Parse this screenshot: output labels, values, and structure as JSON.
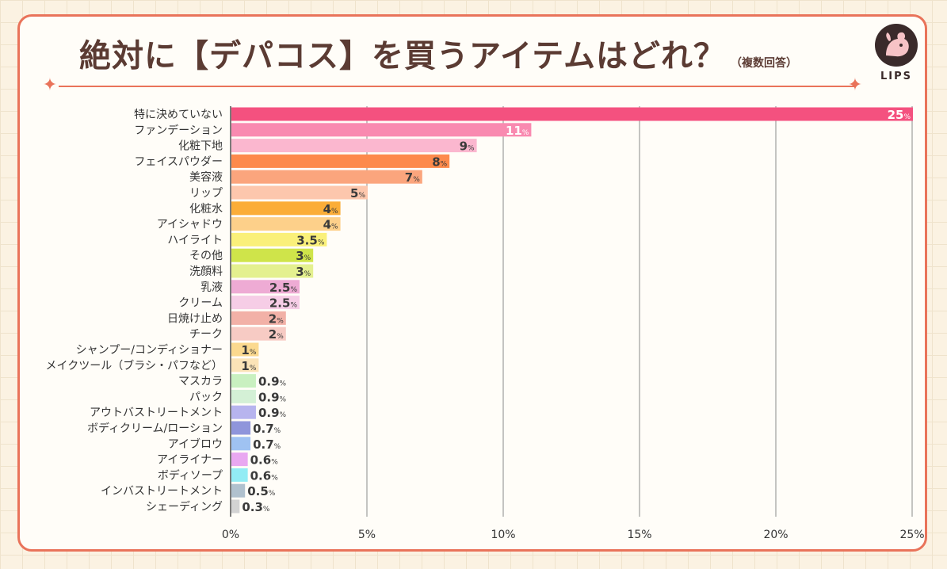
{
  "title": "絶対に【デパコス】を買うアイテムはどれ？",
  "note": "（複数回答）",
  "logo": {
    "text": "LIPS"
  },
  "colors": {
    "accent": "#e9735a",
    "title": "#5b3b33"
  },
  "chart_data": {
    "type": "bar",
    "orientation": "horizontal",
    "title": "絶対に【デパコス】を買うアイテムはどれ？",
    "xlim": [
      0,
      25
    ],
    "ticks": [
      {
        "value": 0,
        "label": "0%"
      },
      {
        "value": 5,
        "label": "5%"
      },
      {
        "value": 10,
        "label": "10%"
      },
      {
        "value": 15,
        "label": "15%"
      },
      {
        "value": 20,
        "label": "20%"
      },
      {
        "value": 25,
        "label": "25%"
      }
    ],
    "unit": "%",
    "categories": [
      "特に決めていない",
      "ファンデーション",
      "化粧下地",
      "フェイスパウダー",
      "美容液",
      "リップ",
      "化粧水",
      "アイシャドウ",
      "ハイライト",
      "その他",
      "洗顔料",
      "乳液",
      "クリーム",
      "日焼け止め",
      "チーク",
      "シャンプー/コンディショナー",
      "メイクツール（ブラシ・パフなど）",
      "マスカラ",
      "パック",
      "アウトバストリートメント",
      "ボディクリーム/ローション",
      "アイブロウ",
      "アイライナー",
      "ボディソープ",
      "インバストリートメント",
      "シェーディング"
    ],
    "values": [
      25,
      11,
      9,
      8,
      7,
      5,
      4,
      4,
      3.5,
      3,
      3,
      2.5,
      2.5,
      2,
      2,
      1,
      1,
      0.9,
      0.9,
      0.9,
      0.7,
      0.7,
      0.6,
      0.6,
      0.5,
      0.3
    ],
    "value_labels": [
      "25",
      "11",
      "9",
      "8",
      "7",
      "5",
      "4",
      "4",
      "3.5",
      "3",
      "3",
      "2.5",
      "2.5",
      "2",
      "2",
      "1",
      "1",
      "0.9",
      "0.9",
      "0.9",
      "0.7",
      "0.7",
      "0.6",
      "0.6",
      "0.5",
      "0.3"
    ],
    "bar_colors": [
      "#f4517f",
      "#f98ab0",
      "#fbb7cf",
      "#fd8a4c",
      "#fba57d",
      "#fdc7ad",
      "#fbad38",
      "#fdd08a",
      "#faf07a",
      "#cfe44a",
      "#e4f08f",
      "#eeabd4",
      "#f6cde6",
      "#f2b1a7",
      "#f7cbc4",
      "#fbd98f",
      "#fbe3b7",
      "#c9f0c0",
      "#d4f0d6",
      "#b7b4ee",
      "#8f95db",
      "#9fc2f2",
      "#e9a8f1",
      "#92ecf4",
      "#b0c1ce",
      "#d3d3d3"
    ],
    "label_inside_first": true
  }
}
